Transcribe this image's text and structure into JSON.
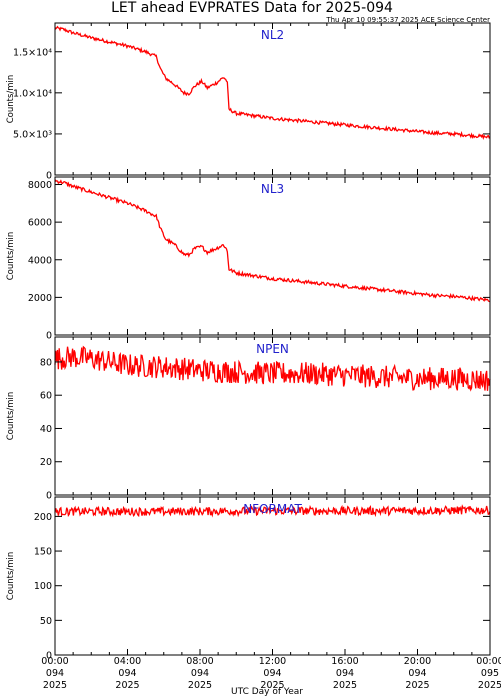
{
  "page": {
    "title": "LET ahead EVPRATES Data for 2025-094",
    "subtitle": "Thu Apr 10 09:55:37 2025 ACE Science Center",
    "xlabel": "UTC Day of Year"
  },
  "colors": {
    "series": "#ff0000",
    "label": "#2222cc",
    "axes": "#000000"
  },
  "chart_data": [
    {
      "type": "line",
      "title": "NL2",
      "ylabel": "Counts/min",
      "ylim": [
        0,
        18500
      ],
      "yticks": [
        0,
        5000,
        10000,
        15000
      ],
      "ytick_labels": [
        "0",
        "5.0×10³",
        "1.0×10⁴",
        "1.5×10⁴"
      ],
      "xlim": [
        0,
        24
      ],
      "xticks": [
        0,
        4,
        8,
        12,
        16,
        20,
        24
      ],
      "xtick_labels": [
        [
          "00:00",
          "094",
          "2025"
        ],
        [
          "04:00",
          "094",
          "2025"
        ],
        [
          "08:00",
          "094",
          "2025"
        ],
        [
          "12:00",
          "094",
          "2025"
        ],
        [
          "16:00",
          "094",
          "2025"
        ],
        [
          "20:00",
          "094",
          "2025"
        ],
        [
          "00:00",
          "095",
          "2025"
        ]
      ],
      "noise": 200,
      "series": [
        {
          "values": [
            [
              0,
              17900
            ],
            [
              0.5,
              17700
            ],
            [
              1,
              17300
            ],
            [
              2,
              16700
            ],
            [
              3,
              16200
            ],
            [
              4,
              15700
            ],
            [
              5,
              15000
            ],
            [
              5.6,
              14400
            ],
            [
              5.8,
              13000
            ],
            [
              6.1,
              11800
            ],
            [
              6.6,
              11000
            ],
            [
              7.1,
              10000
            ],
            [
              7.4,
              9900
            ],
            [
              7.7,
              10800
            ],
            [
              8.1,
              11400
            ],
            [
              8.4,
              10600
            ],
            [
              8.9,
              11200
            ],
            [
              9.3,
              11900
            ],
            [
              9.5,
              11400
            ],
            [
              9.6,
              8000
            ],
            [
              10,
              7500
            ],
            [
              11,
              7200
            ],
            [
              12,
              6900
            ],
            [
              13,
              6700
            ],
            [
              14,
              6500
            ],
            [
              15,
              6300
            ],
            [
              16,
              6100
            ],
            [
              17,
              5900
            ],
            [
              18,
              5700
            ],
            [
              19,
              5500
            ],
            [
              20,
              5300
            ],
            [
              21,
              5100
            ],
            [
              22,
              5000
            ],
            [
              23,
              4800
            ],
            [
              24,
              4600
            ]
          ]
        }
      ]
    },
    {
      "type": "line",
      "title": "NL3",
      "ylabel": "Counts/min",
      "ylim": [
        0,
        8400
      ],
      "yticks": [
        0,
        2000,
        4000,
        6000,
        8000
      ],
      "ytick_labels": [
        "0",
        "2000",
        "4000",
        "6000",
        "8000"
      ],
      "xlim": [
        0,
        24
      ],
      "noise": 90,
      "series": [
        {
          "values": [
            [
              0,
              8200
            ],
            [
              0.5,
              8100
            ],
            [
              1,
              7900
            ],
            [
              2,
              7600
            ],
            [
              3,
              7300
            ],
            [
              4,
              7000
            ],
            [
              5,
              6600
            ],
            [
              5.6,
              6300
            ],
            [
              5.8,
              5700
            ],
            [
              6.1,
              5100
            ],
            [
              6.6,
              4800
            ],
            [
              7.1,
              4300
            ],
            [
              7.4,
              4250
            ],
            [
              7.7,
              4600
            ],
            [
              8.1,
              4700
            ],
            [
              8.4,
              4400
            ],
            [
              8.9,
              4600
            ],
            [
              9.3,
              4800
            ],
            [
              9.5,
              4500
            ],
            [
              9.6,
              3500
            ],
            [
              10,
              3300
            ],
            [
              11,
              3150
            ],
            [
              12,
              3000
            ],
            [
              13,
              2900
            ],
            [
              14,
              2800
            ],
            [
              15,
              2700
            ],
            [
              16,
              2600
            ],
            [
              17,
              2500
            ],
            [
              18,
              2400
            ],
            [
              19,
              2300
            ],
            [
              20,
              2200
            ],
            [
              21,
              2100
            ],
            [
              22,
              2050
            ],
            [
              23,
              1950
            ],
            [
              24,
              1850
            ]
          ]
        }
      ]
    },
    {
      "type": "line",
      "title": "NPEN",
      "ylabel": "Counts/min",
      "ylim": [
        0,
        95
      ],
      "yticks": [
        0,
        20,
        40,
        60,
        80
      ],
      "ytick_labels": [
        "0",
        "20",
        "40",
        "60",
        "80"
      ],
      "xlim": [
        0,
        24
      ],
      "noise": 7,
      "series": [
        {
          "values": [
            [
              0,
              82
            ],
            [
              1,
              83
            ],
            [
              2,
              82
            ],
            [
              3,
              80
            ],
            [
              4,
              78
            ],
            [
              6,
              77
            ],
            [
              8,
              75
            ],
            [
              10,
              74
            ],
            [
              12,
              73
            ],
            [
              14,
              73
            ],
            [
              16,
              72
            ],
            [
              18,
              71
            ],
            [
              20,
              70
            ],
            [
              22,
              70
            ],
            [
              24,
              69
            ]
          ]
        }
      ]
    },
    {
      "type": "line",
      "title": "NFORMAT",
      "ylabel": "Counts/min",
      "ylim": [
        0,
        228
      ],
      "yticks": [
        0,
        50,
        100,
        150,
        200
      ],
      "ytick_labels": [
        "0",
        "50",
        "100",
        "150",
        "200"
      ],
      "xlim": [
        0,
        24
      ],
      "noise": 6,
      "series": [
        {
          "values": [
            [
              0,
              207
            ],
            [
              6,
              207
            ],
            [
              12,
              208
            ],
            [
              18,
              208
            ],
            [
              24,
              209
            ]
          ]
        }
      ]
    }
  ]
}
